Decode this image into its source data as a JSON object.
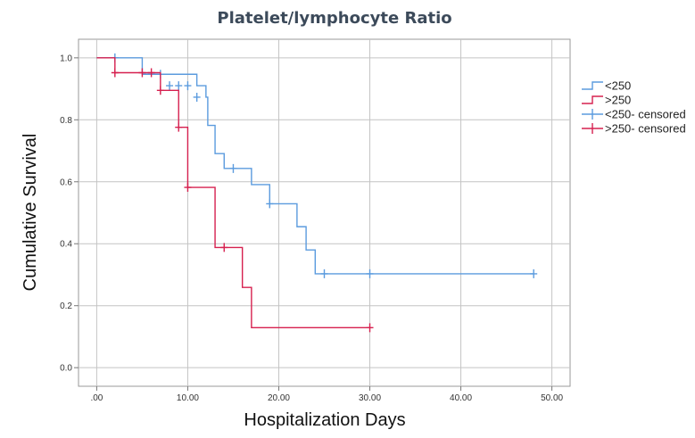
{
  "chart_data": {
    "type": "line",
    "title": "Platelet/lymphocyte Ratio",
    "xlabel": "Hospitalization Days",
    "ylabel": "Cumulative Survival",
    "xlim": [
      -2,
      52
    ],
    "ylim": [
      -0.06,
      1.06
    ],
    "x_ticks": [
      0,
      10,
      20,
      30,
      40,
      50
    ],
    "x_tick_labels": [
      ".00",
      "10.00",
      "20.00",
      "30.00",
      "40.00",
      "50.00"
    ],
    "y_ticks": [
      0,
      0.2,
      0.4,
      0.6,
      0.8,
      1.0
    ],
    "y_tick_labels": [
      "0.0",
      "0.2",
      "0.4",
      "0.6",
      "0.8",
      "1.0"
    ],
    "grid": true,
    "legend_position": "right",
    "series": [
      {
        "name": "<250",
        "color": "#5b9bde",
        "steps": [
          [
            0,
            1.0
          ],
          [
            5,
            0.947
          ],
          [
            11,
            0.91
          ],
          [
            12,
            0.873
          ],
          [
            12.2,
            0.782
          ],
          [
            13,
            0.691
          ],
          [
            14,
            0.643
          ],
          [
            17,
            0.591
          ],
          [
            19,
            0.529
          ],
          [
            22,
            0.455
          ],
          [
            23,
            0.38
          ],
          [
            24,
            0.303
          ],
          [
            48,
            0.303
          ]
        ],
        "censored": [
          [
            2,
            1.0
          ],
          [
            7,
            0.947
          ],
          [
            8,
            0.91
          ],
          [
            9,
            0.91
          ],
          [
            10,
            0.91
          ],
          [
            11,
            0.873
          ],
          [
            15,
            0.643
          ],
          [
            19,
            0.529
          ],
          [
            25,
            0.303
          ],
          [
            30,
            0.303
          ],
          [
            48,
            0.303
          ]
        ]
      },
      {
        "name": ">250",
        "color": "#d6204f",
        "steps": [
          [
            0,
            1.0
          ],
          [
            2,
            0.952
          ],
          [
            7,
            0.895
          ],
          [
            9,
            0.776
          ],
          [
            10,
            0.582
          ],
          [
            13,
            0.388
          ],
          [
            16,
            0.259
          ],
          [
            17,
            0.129
          ],
          [
            30,
            0.129
          ]
        ],
        "censored": [
          [
            2,
            0.952
          ],
          [
            5,
            0.952
          ],
          [
            6,
            0.952
          ],
          [
            7,
            0.895
          ],
          [
            9,
            0.776
          ],
          [
            10,
            0.582
          ],
          [
            14,
            0.388
          ],
          [
            30,
            0.129
          ]
        ]
      }
    ],
    "legend": [
      {
        "label": "<250",
        "kind": "line",
        "color": "#5b9bde"
      },
      {
        "label": ">250",
        "kind": "line",
        "color": "#d6204f"
      },
      {
        "label": "<250- censored",
        "kind": "censored",
        "color": "#5b9bde"
      },
      {
        "label": ">250- censored",
        "kind": "censored",
        "color": "#d6204f"
      }
    ]
  }
}
